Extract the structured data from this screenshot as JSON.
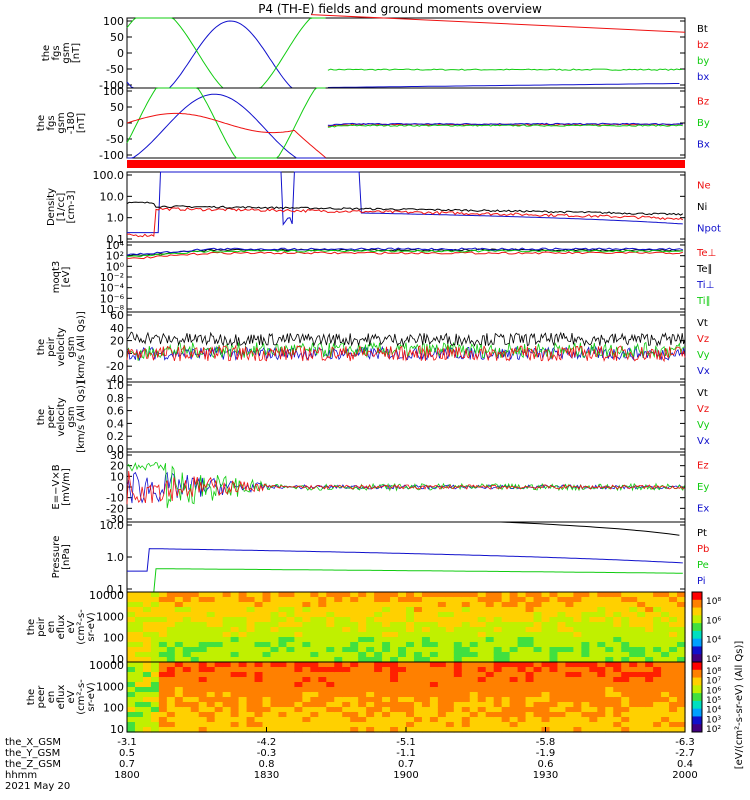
{
  "title": "P4 (TH-E) fields and ground moments overview",
  "colors": {
    "black": "#000000",
    "red": "#ee1111",
    "green": "#11cc11",
    "blue": "#1111cc",
    "sep_red": "#ff0000"
  },
  "chart_data": {
    "type": "line",
    "x_axis": {
      "ticks": [
        "1800",
        "1830",
        "1900",
        "1930",
        "2000"
      ],
      "rows": [
        {
          "label": "the_X_GSM",
          "values": [
            "-3.1",
            "-4.2",
            "-5.1",
            "-5.8",
            "-6.3"
          ]
        },
        {
          "label": "the_Y_GSM",
          "values": [
            "0.5",
            "-0.3",
            "-1.1",
            "-1.9",
            "-2.7"
          ]
        },
        {
          "label": "the_Z_GSM",
          "values": [
            "0.7",
            "0.8",
            "0.7",
            "0.6",
            "0.4"
          ]
        },
        {
          "label": "hhmm",
          "values": [
            "1800",
            "1830",
            "1900",
            "1930",
            "2000"
          ]
        }
      ],
      "date": "2021 May 20"
    },
    "panels": [
      {
        "id": "fgs",
        "ylabel": [
          "the",
          "fgs",
          "gsm",
          "[nT]"
        ],
        "ticks": [
          "100",
          "50",
          "0",
          "-50",
          "-100"
        ],
        "legend": [
          {
            "name": "Bt",
            "color": "black"
          },
          {
            "name": "bz",
            "color": "red"
          },
          {
            "name": "by",
            "color": "green"
          },
          {
            "name": "bx",
            "color": "blue"
          }
        ]
      },
      {
        "id": "fgs_dsl",
        "ylabel": [
          "the",
          "fgs",
          "gsm",
          "-180",
          "[nT]"
        ],
        "ticks": [
          "100",
          "50",
          "0",
          "-50",
          "-100"
        ],
        "legend": [
          {
            "name": "Bz",
            "color": "red"
          },
          {
            "name": "By",
            "color": "green"
          },
          {
            "name": "Bx",
            "color": "blue"
          }
        ]
      },
      {
        "id": "density",
        "ylabel": [
          "Density",
          "[1/cc]",
          "[cm-3]"
        ],
        "ticks": [
          "100.0",
          "10.0",
          "1.0",
          "0.1"
        ],
        "legend": [
          {
            "name": "Ne",
            "color": "red"
          },
          {
            "name": "Ni",
            "color": "black"
          },
          {
            "name": "Npot",
            "color": "blue"
          }
        ]
      },
      {
        "id": "temp",
        "ylabel": [
          "moqt3",
          "[eV]"
        ],
        "ticks": [
          "10⁴",
          "10²",
          "10⁰",
          "10⁻²",
          "10⁻⁴",
          "10⁻⁶",
          "10⁻⁸"
        ],
        "legend": [
          {
            "name": "Te⊥",
            "color": "red"
          },
          {
            "name": "Te∥",
            "color": "black"
          },
          {
            "name": "Ti⊥",
            "color": "blue"
          },
          {
            "name": "Ti∥",
            "color": "green"
          }
        ]
      },
      {
        "id": "peir_vel",
        "ylabel": [
          "the",
          "peir",
          "velocity",
          "gsm",
          "[km/s (All Qs)]"
        ],
        "ticks": [
          "60",
          "40",
          "20",
          "0",
          "-20",
          "-40"
        ],
        "legend": [
          {
            "name": "Vt",
            "color": "black"
          },
          {
            "name": "Vz",
            "color": "red"
          },
          {
            "name": "Vy",
            "color": "green"
          },
          {
            "name": "Vx",
            "color": "blue"
          }
        ]
      },
      {
        "id": "peer_vel",
        "ylabel": [
          "the",
          "peer",
          "velocity",
          "gsm",
          "[km/s (All Qs)]"
        ],
        "ticks": [
          "1.0",
          "0.8",
          "0.6",
          "0.4",
          "0.2",
          "0.0"
        ],
        "legend": [
          {
            "name": "Vt",
            "color": "black"
          },
          {
            "name": "Vz",
            "color": "red"
          },
          {
            "name": "Vy",
            "color": "green"
          },
          {
            "name": "Vx",
            "color": "blue"
          }
        ]
      },
      {
        "id": "efield",
        "ylabel": [
          "E=−V×B",
          "[mV/m]"
        ],
        "ticks": [
          "30",
          "20",
          "10",
          "0",
          "-10",
          "-20",
          "-30"
        ],
        "legend": [
          {
            "name": "Ez",
            "color": "red"
          },
          {
            "name": "Ey",
            "color": "green"
          },
          {
            "name": "Ex",
            "color": "blue"
          }
        ]
      },
      {
        "id": "pressure",
        "ylabel": [
          "Pressure",
          "[nPa]"
        ],
        "ticks": [
          "10.0",
          "1.0",
          "0.1"
        ],
        "legend": [
          {
            "name": "Pt",
            "color": "black"
          },
          {
            "name": "Pb",
            "color": "red"
          },
          {
            "name": "Pe",
            "color": "green"
          },
          {
            "name": "Pi",
            "color": "blue"
          }
        ]
      },
      {
        "id": "peir_en",
        "ylabel": [
          "the",
          "peir",
          "en",
          "eflux",
          "eV",
          "(cm²-s-",
          "sr-eV)"
        ],
        "ticks": [
          "10000",
          "1000",
          "100",
          "10"
        ]
      },
      {
        "id": "peer_en",
        "ylabel": [
          "the",
          "peer",
          "en",
          "eflux",
          "eV",
          "(cm²-s-",
          "sr-eV)"
        ],
        "ticks": [
          "10000",
          "1000",
          "100",
          "10"
        ]
      }
    ],
    "colorbars": [
      {
        "ticks": [
          "10⁸",
          "10⁶",
          "10⁴",
          "10²"
        ]
      },
      {
        "ticks": [
          "10⁸",
          "10⁷",
          "10⁶",
          "10⁵",
          "10⁴",
          "10³",
          "10²"
        ]
      }
    ],
    "colorbar_label": "[eV/(cm²-s-sr-eV) (All Qs)]",
    "series": {
      "fgs_bt_line": {
        "x": [
          0.33,
          1.0
        ],
        "y": [
          120,
          65
        ]
      },
      "fgs_by_after": -52,
      "fgs_bx_after": -95,
      "density_after": {
        "Ne": 0.9,
        "Ni": 1.4,
        "Npot": 0.5
      },
      "pressure_end": {
        "Pt": 6.0,
        "Pi": 0.6,
        "Pe": 0.25
      }
    }
  }
}
